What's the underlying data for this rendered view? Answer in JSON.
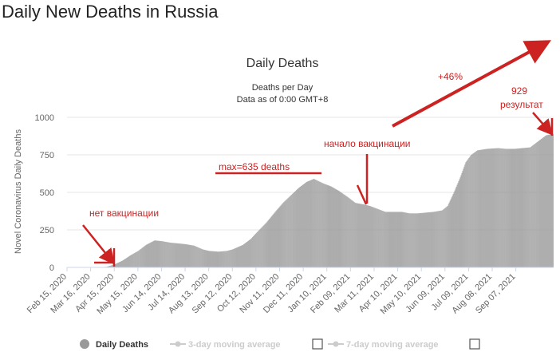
{
  "page": {
    "title": "Daily New Deaths in Russia"
  },
  "chart_data": {
    "type": "bar",
    "title": "Daily Deaths",
    "subtitle": "Deaths per Day",
    "subtitle2": "Data as of 0:00 GMT+8",
    "ylabel": "Novel Coronavirus Daily Deaths",
    "xlabel": "",
    "ylim": [
      0,
      1000
    ],
    "yticks": [
      0,
      250,
      500,
      750,
      1000
    ],
    "ytick_labels": [
      "0",
      "250",
      "500",
      "750",
      "1000"
    ],
    "grid": true,
    "x_start": "2020-02-15",
    "x_end": "2021-10-24",
    "x_tick_labels": [
      "Feb 15, 2020",
      "Mar 16, 2020",
      "Apr 15, 2020",
      "May 15, 2020",
      "Jun 14, 2020",
      "Jul 14, 2020",
      "Aug 13, 2020",
      "Sep 12, 2020",
      "Oct 12, 2020",
      "Nov 11, 2020",
      "Dec 11, 2020",
      "Jan 10, 2021",
      "Feb 09, 2021",
      "Mar 11, 2021",
      "Apr 10, 2021",
      "May 10, 2021",
      "Jun 09, 2021",
      "Jul 09, 2021",
      "Aug 08, 2021",
      "Sep 07, 2021"
    ],
    "series": [
      {
        "name": "Daily Deaths",
        "color": "#999999",
        "points": [
          [
            "2020-02-15",
            0
          ],
          [
            "2020-03-25",
            0
          ],
          [
            "2020-04-05",
            4
          ],
          [
            "2020-04-15",
            20
          ],
          [
            "2020-04-25",
            45
          ],
          [
            "2020-05-05",
            80
          ],
          [
            "2020-05-15",
            110
          ],
          [
            "2020-05-25",
            150
          ],
          [
            "2020-06-05",
            180
          ],
          [
            "2020-06-14",
            175
          ],
          [
            "2020-06-25",
            165
          ],
          [
            "2020-07-05",
            160
          ],
          [
            "2020-07-14",
            155
          ],
          [
            "2020-07-25",
            145
          ],
          [
            "2020-08-05",
            120
          ],
          [
            "2020-08-13",
            110
          ],
          [
            "2020-08-25",
            105
          ],
          [
            "2020-09-05",
            110
          ],
          [
            "2020-09-12",
            120
          ],
          [
            "2020-09-25",
            150
          ],
          [
            "2020-10-05",
            190
          ],
          [
            "2020-10-12",
            230
          ],
          [
            "2020-10-25",
            300
          ],
          [
            "2020-11-05",
            370
          ],
          [
            "2020-11-15",
            430
          ],
          [
            "2020-11-25",
            480
          ],
          [
            "2020-12-05",
            530
          ],
          [
            "2020-12-15",
            570
          ],
          [
            "2020-12-24",
            590
          ],
          [
            "2021-01-05",
            560
          ],
          [
            "2021-01-15",
            540
          ],
          [
            "2021-01-25",
            510
          ],
          [
            "2021-02-05",
            470
          ],
          [
            "2021-02-15",
            430
          ],
          [
            "2021-02-25",
            420
          ],
          [
            "2021-03-05",
            410
          ],
          [
            "2021-03-15",
            390
          ],
          [
            "2021-03-25",
            370
          ],
          [
            "2021-04-05",
            370
          ],
          [
            "2021-04-15",
            370
          ],
          [
            "2021-04-25",
            360
          ],
          [
            "2021-05-05",
            360
          ],
          [
            "2021-05-15",
            365
          ],
          [
            "2021-05-25",
            370
          ],
          [
            "2021-06-05",
            380
          ],
          [
            "2021-06-12",
            410
          ],
          [
            "2021-06-20",
            500
          ],
          [
            "2021-06-28",
            600
          ],
          [
            "2021-07-05",
            700
          ],
          [
            "2021-07-12",
            750
          ],
          [
            "2021-07-20",
            780
          ],
          [
            "2021-08-01",
            790
          ],
          [
            "2021-08-15",
            795
          ],
          [
            "2021-08-25",
            790
          ],
          [
            "2021-09-05",
            790
          ],
          [
            "2021-09-15",
            795
          ],
          [
            "2021-09-25",
            800
          ],
          [
            "2021-10-05",
            840
          ],
          [
            "2021-10-15",
            880
          ],
          [
            "2021-10-24",
            890
          ]
        ]
      }
    ],
    "legend": [
      {
        "label": "Daily Deaths",
        "state": "active",
        "color": "#999999"
      },
      {
        "label": "3-day moving average",
        "state": "hidden",
        "color": "#cccccc"
      },
      {
        "label": "7-day moving average",
        "state": "hidden",
        "color": "#cccccc"
      }
    ],
    "legend_position": "bottom",
    "annotations": {
      "no_vaccination": "нет вакцинации",
      "max_label": "max=635 deaths",
      "vaccination_start": "начало вакцинации",
      "growth": "+46%",
      "result_value": "929",
      "result_label": "результат",
      "color": "#cc2222"
    }
  }
}
